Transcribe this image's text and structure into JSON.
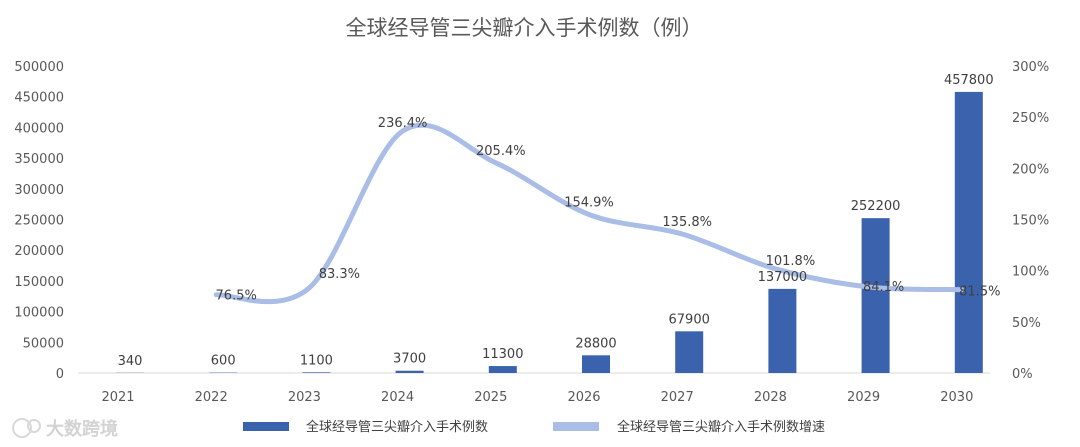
{
  "chart_data": {
    "type": "bar",
    "title": "全球经导管三尖瓣介入手术例数（例）",
    "categories": [
      "2021",
      "2022",
      "2023",
      "2024",
      "2025",
      "2026",
      "2027",
      "2028",
      "2029",
      "2030"
    ],
    "series": [
      {
        "name": "全球经导管三尖瓣介入手术例数",
        "type": "bar",
        "axis": "left",
        "color": "#3a62ad",
        "values": [
          340,
          600,
          1100,
          3700,
          11300,
          28800,
          67900,
          137000,
          252200,
          457800
        ],
        "labels": [
          "340",
          "600",
          "1100",
          "3700",
          "11300",
          "28800",
          "67900",
          "137000",
          "252200",
          "457800"
        ]
      },
      {
        "name": "全球经导管三尖瓣介入手术例数增速",
        "type": "line",
        "axis": "right",
        "color": "#a9bde6",
        "values": [
          null,
          76.5,
          83.3,
          236.4,
          205.4,
          154.9,
          135.8,
          101.8,
          84.1,
          81.5
        ],
        "labels": [
          "",
          "76.5%",
          "83.3%",
          "236.4%",
          "205.4%",
          "154.9%",
          "135.8%",
          "101.8%",
          "84.1%",
          "81.5%"
        ]
      }
    ],
    "y_left": {
      "min": 0,
      "max": 500000,
      "ticks": [
        "0",
        "50000",
        "100000",
        "150000",
        "200000",
        "250000",
        "300000",
        "350000",
        "400000",
        "450000",
        "500000"
      ]
    },
    "y_right": {
      "min": 0,
      "max": 300,
      "ticks": [
        "0%",
        "50%",
        "100%",
        "150%",
        "200%",
        "250%",
        "300%"
      ]
    },
    "grid": false,
    "legend_position": "bottom"
  },
  "watermark": "大数跨境"
}
